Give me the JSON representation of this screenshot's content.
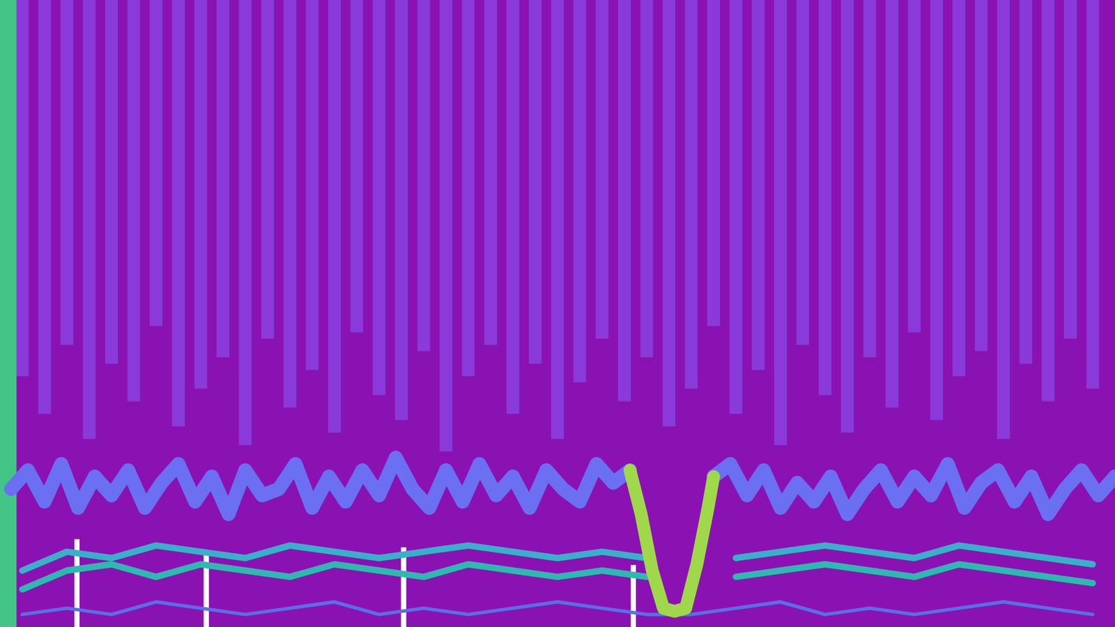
{
  "chart_data": {
    "type": "line",
    "color": "#8a12b2",
    "tick_labels": false,
    "grid": false,
    "xlim": [
      0,
      100
    ],
    "ylim": [
      0,
      100
    ],
    "y2lim": [
      0,
      100
    ],
    "series": [
      {
        "type": "bar",
        "axis": "y2",
        "color": "#8a3ad8",
        "x": [
          2,
          4,
          6,
          8,
          10,
          12,
          14,
          16,
          18,
          20,
          22,
          24,
          26,
          28,
          30,
          32,
          34,
          36,
          38,
          40,
          42,
          44,
          46,
          48,
          50,
          52,
          54,
          56,
          58,
          60,
          62,
          64,
          66,
          68,
          70,
          72,
          74,
          76,
          78,
          80,
          82,
          84,
          86,
          88,
          90,
          92,
          94,
          96,
          98
        ],
        "values": [
          60,
          66,
          55,
          70,
          58,
          64,
          52,
          68,
          62,
          57,
          71,
          54,
          65,
          59,
          69,
          53,
          63,
          67,
          56,
          72,
          60,
          55,
          66,
          58,
          70,
          61,
          54,
          64,
          57,
          68,
          62,
          52,
          66,
          59,
          71,
          55,
          63,
          69,
          57,
          65,
          53,
          67,
          60,
          56,
          70,
          58,
          64,
          54,
          62
        ]
      },
      {
        "type": "bar",
        "color": "#44c487",
        "x": [
          0.7
        ],
        "values": [
          100
        ]
      },
      {
        "type": "bar",
        "color": "#ffffff",
        "x": [
          6.9,
          18.5,
          36.2,
          56.8
        ],
        "values": [
          14,
          11.6,
          12.7,
          9.9
        ]
      },
      {
        "type": "line",
        "color": "#5a6ee6",
        "x": [
          2,
          6,
          10,
          14,
          18,
          22,
          26,
          30,
          34,
          38,
          42,
          46,
          50,
          54,
          58,
          62,
          66,
          70,
          74,
          78,
          82,
          86,
          90,
          94,
          98
        ],
        "values": [
          2,
          3,
          2,
          4,
          3,
          2,
          3,
          4,
          2,
          3,
          2,
          3,
          4,
          3,
          2,
          2,
          3,
          4,
          2,
          3,
          2,
          3,
          4,
          3,
          2
        ]
      },
      {
        "type": "line",
        "color": "#2fb8b0",
        "x": [
          2,
          6,
          10,
          14,
          18,
          22,
          26,
          30,
          34,
          38,
          42,
          46,
          50,
          54,
          58,
          62,
          66,
          70,
          74,
          78,
          82,
          86,
          90,
          94,
          98
        ],
        "values": [
          6,
          9,
          10,
          8,
          10,
          9,
          8,
          10,
          9,
          8,
          10,
          9,
          8,
          9,
          8,
          null,
          8,
          9,
          10,
          9,
          8,
          10,
          9,
          8,
          7
        ]
      },
      {
        "type": "line",
        "color": "#3ab0c8",
        "x": [
          2,
          6,
          10,
          14,
          18,
          22,
          26,
          30,
          34,
          38,
          42,
          46,
          50,
          54,
          58,
          62,
          66,
          70,
          74,
          78,
          82,
          86,
          90,
          94,
          98
        ],
        "values": [
          9,
          12,
          11,
          13,
          12,
          11,
          13,
          12,
          11,
          12,
          13,
          12,
          11,
          12,
          11,
          null,
          11,
          12,
          13,
          12,
          11,
          13,
          12,
          11,
          10
        ]
      },
      {
        "type": "line",
        "color": "#6b6ff2",
        "x": [
          1,
          2.5,
          4,
          5.5,
          7,
          8.5,
          10,
          11.5,
          13,
          14.5,
          16,
          17.5,
          19,
          20.5,
          22,
          23.5,
          25,
          26.5,
          28,
          29.5,
          31,
          32.5,
          34,
          35.5,
          37,
          38.5,
          40,
          41.5,
          43,
          44.5,
          46,
          47.5,
          49,
          50.5,
          52,
          53.5,
          55,
          56.5
        ],
        "values": [
          22,
          25,
          20,
          26,
          19,
          24,
          21,
          25,
          19,
          23,
          26,
          20,
          24,
          18,
          25,
          21,
          22,
          26,
          19,
          24,
          20,
          25,
          21,
          27,
          22,
          19,
          25,
          20,
          26,
          21,
          24,
          19,
          25,
          22,
          20,
          26,
          23,
          25
        ]
      },
      {
        "type": "line",
        "color": "#6b6ff2",
        "x": [
          64,
          65.5,
          67,
          68.5,
          70,
          71.5,
          73,
          74.5,
          76,
          77.5,
          79,
          80.5,
          82,
          83.5,
          85,
          86.5,
          88,
          89.5,
          91,
          92.5,
          94,
          95.5,
          97,
          98.5,
          100
        ],
        "values": [
          24,
          26,
          21,
          25,
          19,
          23,
          20,
          24,
          18,
          22,
          25,
          20,
          24,
          21,
          26,
          19,
          23,
          25,
          20,
          24,
          18,
          22,
          25,
          21,
          24
        ]
      },
      {
        "type": "line",
        "color": "#9fd84a",
        "x": [
          56.5,
          57.5,
          58.5,
          59.5,
          60.5,
          61.5,
          62.5,
          63.5,
          64
        ],
        "values": [
          25,
          18,
          9,
          3,
          2.5,
          3,
          10,
          19,
          24
        ]
      }
    ]
  }
}
